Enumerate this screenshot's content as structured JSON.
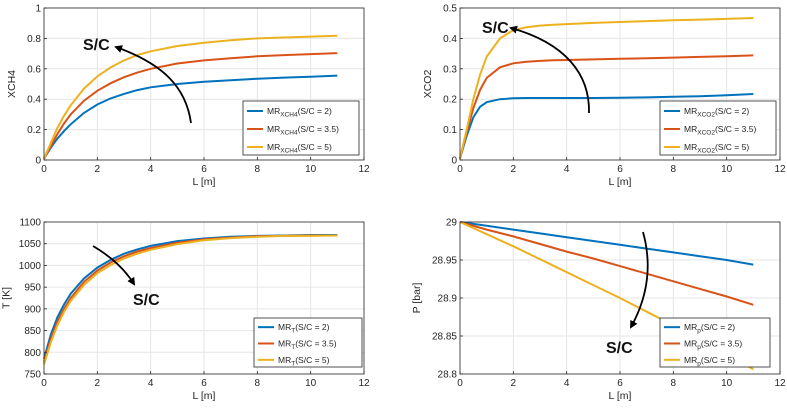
{
  "colors": {
    "s1": "#0072BD",
    "s2": "#D95319",
    "s3": "#EDB120",
    "grid": "#E6E6E6",
    "axis": "#262626",
    "arrow": "#000000"
  },
  "chart_data": [
    {
      "type": "line",
      "ylabel": "XCH4",
      "xlabel": "L [m]",
      "xlim": [
        0,
        12
      ],
      "ylim": [
        0,
        1
      ],
      "xticks": [
        "0",
        "2",
        "4",
        "6",
        "8",
        "10",
        "12"
      ],
      "yticks": [
        "0",
        "0.2",
        "0.4",
        "0.6",
        "0.8",
        "1"
      ],
      "annotation": "S/C",
      "legend_location": "lower-right",
      "x": [
        0,
        0.25,
        0.5,
        0.75,
        1,
        1.5,
        2,
        2.5,
        3,
        3.5,
        4,
        5,
        6,
        7,
        8,
        9,
        10,
        11
      ],
      "series": [
        {
          "name": "MR",
          "sub": "XCH4",
          "suffix": "(S/C = 2)",
          "values": [
            0.01,
            0.08,
            0.14,
            0.19,
            0.235,
            0.31,
            0.365,
            0.405,
            0.435,
            0.46,
            0.478,
            0.5,
            0.515,
            0.525,
            0.535,
            0.542,
            0.548,
            0.555
          ]
        },
        {
          "name": "MR",
          "sub": "XCH4",
          "suffix": "(S/C = 3.5)",
          "values": [
            0.01,
            0.09,
            0.17,
            0.24,
            0.3,
            0.39,
            0.455,
            0.505,
            0.545,
            0.575,
            0.6,
            0.635,
            0.655,
            0.67,
            0.682,
            0.69,
            0.697,
            0.703
          ]
        },
        {
          "name": "MR",
          "sub": "XCH4",
          "suffix": "(S/C = 5)",
          "values": [
            0.01,
            0.11,
            0.21,
            0.29,
            0.36,
            0.47,
            0.55,
            0.61,
            0.655,
            0.69,
            0.715,
            0.75,
            0.772,
            0.788,
            0.8,
            0.806,
            0.812,
            0.818
          ]
        }
      ]
    },
    {
      "type": "line",
      "ylabel": "XCO2",
      "xlabel": "L [m]",
      "xlim": [
        0,
        12
      ],
      "ylim": [
        0,
        0.5
      ],
      "xticks": [
        "0",
        "2",
        "4",
        "6",
        "8",
        "10",
        "12"
      ],
      "yticks": [
        "0",
        "0.1",
        "0.2",
        "0.3",
        "0.4",
        "0.5"
      ],
      "annotation": "S/C",
      "legend_location": "lower-right",
      "x": [
        0,
        0.25,
        0.5,
        0.75,
        1,
        1.5,
        2,
        2.5,
        3,
        3.5,
        4,
        5,
        6,
        7,
        8,
        9,
        10,
        11
      ],
      "series": [
        {
          "name": "MR",
          "sub": "XCO2",
          "suffix": "(S/C = 2)",
          "values": [
            0.005,
            0.08,
            0.14,
            0.175,
            0.19,
            0.2,
            0.203,
            0.204,
            0.204,
            0.204,
            0.204,
            0.204,
            0.205,
            0.206,
            0.208,
            0.21,
            0.213,
            0.217
          ]
        },
        {
          "name": "MR",
          "sub": "XCO2",
          "suffix": "(S/C = 3.5)",
          "values": [
            0.005,
            0.09,
            0.17,
            0.23,
            0.27,
            0.305,
            0.318,
            0.323,
            0.326,
            0.328,
            0.329,
            0.331,
            0.333,
            0.335,
            0.337,
            0.339,
            0.341,
            0.344
          ]
        },
        {
          "name": "MR",
          "sub": "XCO2",
          "suffix": "(S/C = 5)",
          "values": [
            0.005,
            0.1,
            0.2,
            0.28,
            0.34,
            0.4,
            0.427,
            0.437,
            0.442,
            0.445,
            0.447,
            0.451,
            0.454,
            0.457,
            0.46,
            0.462,
            0.464,
            0.467
          ]
        }
      ]
    },
    {
      "type": "line",
      "ylabel": "T [K]",
      "xlabel": "L [m]",
      "xlim": [
        0,
        12
      ],
      "ylim": [
        750,
        1100
      ],
      "xticks": [
        "0",
        "2",
        "4",
        "6",
        "8",
        "10",
        "12"
      ],
      "yticks": [
        "750",
        "800",
        "850",
        "900",
        "950",
        "1000",
        "1050",
        "1100"
      ],
      "annotation": "S/C",
      "legend_location": "lower-right",
      "x": [
        0,
        0.25,
        0.5,
        0.75,
        1,
        1.5,
        2,
        2.5,
        3,
        3.5,
        4,
        5,
        6,
        7,
        8,
        9,
        10,
        11
      ],
      "series": [
        {
          "name": "MR",
          "sub": "T",
          "suffix": "(S/C = 2)",
          "values": [
            785,
            840,
            880,
            910,
            935,
            970,
            995,
            1013,
            1027,
            1037,
            1045,
            1056,
            1062,
            1066,
            1068,
            1069,
            1070,
            1070
          ]
        },
        {
          "name": "MR",
          "sub": "T",
          "suffix": "(S/C = 3.5)",
          "values": [
            778,
            830,
            870,
            900,
            925,
            962,
            988,
            1007,
            1021,
            1032,
            1040,
            1052,
            1060,
            1064,
            1067,
            1068,
            1069,
            1069
          ]
        },
        {
          "name": "MR",
          "sub": "T",
          "suffix": "(S/C = 5)",
          "values": [
            772,
            822,
            862,
            893,
            918,
            955,
            982,
            1001,
            1016,
            1027,
            1036,
            1049,
            1058,
            1063,
            1066,
            1068,
            1068,
            1069
          ]
        }
      ]
    },
    {
      "type": "line",
      "ylabel": "P [bar]",
      "xlabel": "L [m]",
      "xlim": [
        0,
        12
      ],
      "ylim": [
        28.8,
        29
      ],
      "xticks": [
        "0",
        "2",
        "4",
        "6",
        "8",
        "10",
        "12"
      ],
      "yticks": [
        "28.8",
        "28.85",
        "28.9",
        "28.95",
        "29"
      ],
      "annotation": "S/C",
      "legend_location": "lower-right",
      "x": [
        0,
        1,
        2,
        3,
        4,
        5,
        6,
        7,
        8,
        9,
        10,
        11
      ],
      "series": [
        {
          "name": "MR",
          "sub": "p",
          "suffix": "(S/C = 2)",
          "values": [
            29,
            28.995,
            28.99,
            28.985,
            28.98,
            28.975,
            28.97,
            28.965,
            28.96,
            28.955,
            28.95,
            28.944
          ]
        },
        {
          "name": "MR",
          "sub": "p",
          "suffix": "(S/C = 3.5)",
          "values": [
            29,
            28.99,
            28.981,
            28.971,
            28.961,
            28.952,
            28.942,
            28.932,
            28.922,
            28.912,
            28.902,
            28.891
          ]
        },
        {
          "name": "MR",
          "sub": "p",
          "suffix": "(S/C = 5)",
          "values": [
            29,
            28.984,
            28.968,
            28.951,
            28.934,
            28.917,
            28.9,
            28.882,
            28.864,
            28.846,
            28.827,
            28.806
          ]
        }
      ]
    }
  ]
}
